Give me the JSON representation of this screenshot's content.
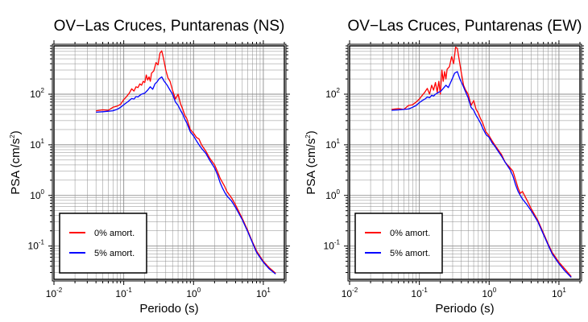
{
  "chart_data": [
    {
      "type": "line",
      "title": "OV−Las Cruces, Puntarenas (NS)",
      "xlabel": "Periodo (s)",
      "ylabel_main": "PSA (cm/s",
      "ylabel_sup": "2",
      "ylabel_close": ")",
      "xscale": "log",
      "yscale": "log",
      "xlim": [
        0.01,
        20
      ],
      "ylim": [
        0.022,
        900
      ],
      "grid": true,
      "legend_position": "bottom-left",
      "series": [
        {
          "name": "0% amort.",
          "color": "#ff0000",
          "x": [
            0.04,
            0.05,
            0.06,
            0.07,
            0.08,
            0.09,
            0.1,
            0.11,
            0.12,
            0.13,
            0.14,
            0.15,
            0.16,
            0.17,
            0.18,
            0.19,
            0.2,
            0.21,
            0.22,
            0.23,
            0.24,
            0.25,
            0.27,
            0.29,
            0.31,
            0.33,
            0.35,
            0.37,
            0.4,
            0.43,
            0.46,
            0.5,
            0.55,
            0.6,
            0.65,
            0.7,
            0.75,
            0.8,
            0.9,
            1.0,
            1.1,
            1.2,
            1.3,
            1.5,
            1.7,
            2.0,
            2.2,
            2.4,
            2.6,
            2.8,
            3.0,
            3.5,
            4.0,
            5.0,
            6.0,
            7.0,
            8.0,
            10.0,
            12.0,
            15.0
          ],
          "y": [
            47,
            49,
            48,
            55,
            58,
            63,
            78,
            90,
            105,
            128,
            115,
            140,
            135,
            160,
            150,
            180,
            170,
            240,
            190,
            220,
            180,
            260,
            290,
            420,
            380,
            650,
            720,
            520,
            300,
            210,
            180,
            120,
            80,
            100,
            65,
            50,
            38,
            33,
            20,
            17,
            14,
            13,
            10,
            7.5,
            5.5,
            4,
            3,
            2.2,
            1.8,
            1.5,
            1.2,
            0.9,
            0.65,
            0.35,
            0.2,
            0.12,
            0.08,
            0.05,
            0.038,
            0.029
          ]
        },
        {
          "name": "5% amort.",
          "color": "#0000ff",
          "x": [
            0.04,
            0.05,
            0.06,
            0.07,
            0.08,
            0.09,
            0.1,
            0.11,
            0.12,
            0.13,
            0.14,
            0.15,
            0.16,
            0.17,
            0.18,
            0.19,
            0.2,
            0.22,
            0.24,
            0.26,
            0.28,
            0.3,
            0.32,
            0.35,
            0.38,
            0.42,
            0.46,
            0.5,
            0.55,
            0.6,
            0.65,
            0.7,
            0.75,
            0.8,
            0.9,
            1.0,
            1.1,
            1.2,
            1.3,
            1.5,
            1.7,
            2.0,
            2.2,
            2.4,
            2.6,
            2.8,
            3.0,
            3.5,
            4.0,
            5.0,
            6.0,
            7.0,
            8.0,
            10.0,
            12.0,
            15.0
          ],
          "y": [
            44,
            45,
            46,
            47,
            50,
            55,
            62,
            68,
            75,
            82,
            80,
            90,
            88,
            95,
            100,
            103,
            105,
            120,
            140,
            125,
            160,
            175,
            200,
            220,
            180,
            150,
            120,
            100,
            70,
            60,
            48,
            40,
            32,
            27,
            18,
            15,
            12,
            10,
            8.5,
            6.8,
            5,
            3.5,
            2.6,
            1.8,
            1.4,
            1.15,
            0.98,
            0.78,
            0.58,
            0.33,
            0.19,
            0.115,
            0.075,
            0.048,
            0.036,
            0.028
          ]
        }
      ]
    },
    {
      "type": "line",
      "title": "OV−Las Cruces, Puntarenas (EW)",
      "xlabel": "Periodo (s)",
      "ylabel_main": "PSA (cm/s",
      "ylabel_sup": "2",
      "ylabel_close": ")",
      "xscale": "log",
      "yscale": "log",
      "xlim": [
        0.01,
        20
      ],
      "ylim": [
        0.022,
        900
      ],
      "grid": true,
      "legend_position": "bottom-left",
      "series": [
        {
          "name": "0% amort.",
          "color": "#ff0000",
          "x": [
            0.04,
            0.05,
            0.06,
            0.07,
            0.08,
            0.09,
            0.1,
            0.11,
            0.12,
            0.13,
            0.14,
            0.15,
            0.16,
            0.17,
            0.18,
            0.19,
            0.2,
            0.21,
            0.22,
            0.23,
            0.24,
            0.25,
            0.27,
            0.29,
            0.31,
            0.33,
            0.35,
            0.37,
            0.4,
            0.43,
            0.46,
            0.5,
            0.55,
            0.6,
            0.65,
            0.7,
            0.75,
            0.8,
            0.9,
            1.0,
            1.1,
            1.2,
            1.3,
            1.5,
            1.7,
            2.0,
            2.2,
            2.4,
            2.6,
            2.8,
            3.0,
            3.5,
            4.0,
            5.0,
            6.0,
            7.0,
            8.0,
            10.0,
            12.0,
            15.0
          ],
          "y": [
            50,
            52,
            50,
            60,
            62,
            70,
            80,
            95,
            110,
            130,
            100,
            150,
            120,
            170,
            110,
            180,
            100,
            300,
            180,
            280,
            200,
            310,
            350,
            550,
            400,
            850,
            800,
            500,
            260,
            150,
            120,
            100,
            60,
            75,
            50,
            42,
            33,
            28,
            18,
            15,
            12,
            10,
            8.5,
            6.5,
            4.5,
            3.5,
            3,
            2,
            1.4,
            1.1,
            1.2,
            0.8,
            0.55,
            0.32,
            0.18,
            0.11,
            0.075,
            0.048,
            0.036,
            0.025
          ]
        },
        {
          "name": "5% amort.",
          "color": "#0000ff",
          "x": [
            0.04,
            0.05,
            0.06,
            0.07,
            0.08,
            0.09,
            0.1,
            0.11,
            0.12,
            0.13,
            0.14,
            0.15,
            0.16,
            0.17,
            0.18,
            0.19,
            0.2,
            0.22,
            0.24,
            0.26,
            0.28,
            0.3,
            0.32,
            0.35,
            0.38,
            0.42,
            0.46,
            0.5,
            0.55,
            0.6,
            0.65,
            0.7,
            0.75,
            0.8,
            0.9,
            1.0,
            1.1,
            1.2,
            1.3,
            1.5,
            1.7,
            2.0,
            2.2,
            2.4,
            2.6,
            2.8,
            3.0,
            3.5,
            4.0,
            5.0,
            6.0,
            7.0,
            8.0,
            10.0,
            12.0,
            15.0
          ],
          "y": [
            48,
            49,
            50,
            51,
            55,
            60,
            68,
            75,
            80,
            88,
            85,
            95,
            92,
            100,
            105,
            110,
            112,
            130,
            150,
            135,
            170,
            210,
            260,
            280,
            200,
            150,
            110,
            85,
            55,
            48,
            38,
            32,
            27,
            22,
            16,
            14,
            11,
            9.5,
            8,
            6,
            4.5,
            3.2,
            2.4,
            1.6,
            1.2,
            1.0,
            0.85,
            0.65,
            0.5,
            0.3,
            0.17,
            0.105,
            0.07,
            0.045,
            0.033,
            0.024
          ]
        }
      ]
    }
  ]
}
